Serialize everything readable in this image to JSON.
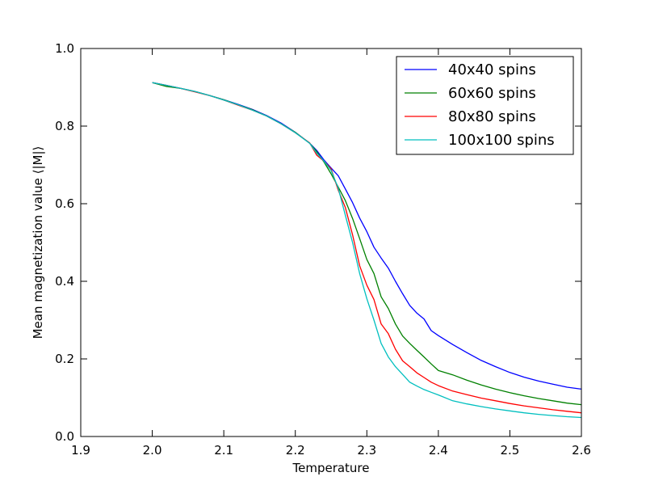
{
  "chart_data": {
    "type": "line",
    "title": "",
    "xlabel": "Temperature",
    "ylabel": "Mean magnetization value ⟨|M|⟩",
    "xlim": [
      1.9,
      2.6
    ],
    "ylim": [
      0.0,
      1.0
    ],
    "xticks": [
      1.9,
      2.0,
      2.1,
      2.2,
      2.3,
      2.4,
      2.5,
      2.6
    ],
    "xtick_labels": [
      "1.9",
      "2.0",
      "2.1",
      "2.2",
      "2.3",
      "2.4",
      "2.5",
      "2.6"
    ],
    "yticks": [
      0.0,
      0.2,
      0.4,
      0.6,
      0.8,
      1.0
    ],
    "ytick_labels": [
      "0.0",
      "0.2",
      "0.4",
      "0.6",
      "0.8",
      "1.0"
    ],
    "grid": false,
    "legend_position": "top-right",
    "series": [
      {
        "name": "40x40 spins",
        "color": "#0000ff",
        "x": [
          2.0,
          2.02,
          2.04,
          2.06,
          2.08,
          2.1,
          2.12,
          2.14,
          2.16,
          2.18,
          2.2,
          2.22,
          2.23,
          2.24,
          2.25,
          2.26,
          2.27,
          2.28,
          2.29,
          2.3,
          2.31,
          2.32,
          2.33,
          2.34,
          2.35,
          2.36,
          2.37,
          2.38,
          2.39,
          2.4,
          2.42,
          2.44,
          2.46,
          2.48,
          2.5,
          2.52,
          2.54,
          2.56,
          2.58,
          2.6
        ],
        "y": [
          0.912,
          0.905,
          0.897,
          0.889,
          0.879,
          0.868,
          0.856,
          0.843,
          0.827,
          0.808,
          0.784,
          0.756,
          0.737,
          0.713,
          0.692,
          0.672,
          0.638,
          0.603,
          0.563,
          0.528,
          0.488,
          0.46,
          0.434,
          0.4,
          0.368,
          0.338,
          0.318,
          0.303,
          0.273,
          0.26,
          0.237,
          0.216,
          0.196,
          0.18,
          0.165,
          0.153,
          0.143,
          0.135,
          0.127,
          0.122
        ]
      },
      {
        "name": "60x60 spins",
        "color": "#008000",
        "x": [
          2.0,
          2.02,
          2.04,
          2.06,
          2.08,
          2.1,
          2.12,
          2.14,
          2.16,
          2.18,
          2.2,
          2.22,
          2.23,
          2.24,
          2.25,
          2.26,
          2.27,
          2.28,
          2.29,
          2.3,
          2.31,
          2.32,
          2.33,
          2.34,
          2.35,
          2.36,
          2.37,
          2.38,
          2.39,
          2.4,
          2.42,
          2.44,
          2.46,
          2.48,
          2.5,
          2.52,
          2.54,
          2.56,
          2.58,
          2.6
        ],
        "y": [
          0.912,
          0.902,
          0.897,
          0.889,
          0.879,
          0.868,
          0.855,
          0.842,
          0.826,
          0.806,
          0.784,
          0.756,
          0.734,
          0.708,
          0.677,
          0.643,
          0.608,
          0.562,
          0.51,
          0.456,
          0.42,
          0.36,
          0.33,
          0.29,
          0.259,
          0.24,
          0.222,
          0.205,
          0.187,
          0.17,
          0.159,
          0.145,
          0.133,
          0.122,
          0.113,
          0.105,
          0.098,
          0.092,
          0.086,
          0.082
        ]
      },
      {
        "name": "80x80 spins",
        "color": "#ff0000",
        "x": [
          2.0,
          2.02,
          2.04,
          2.06,
          2.08,
          2.1,
          2.12,
          2.14,
          2.16,
          2.18,
          2.2,
          2.22,
          2.23,
          2.24,
          2.25,
          2.26,
          2.27,
          2.28,
          2.29,
          2.3,
          2.31,
          2.32,
          2.33,
          2.34,
          2.35,
          2.36,
          2.37,
          2.38,
          2.39,
          2.4,
          2.42,
          2.44,
          2.46,
          2.48,
          2.5,
          2.52,
          2.54,
          2.56,
          2.58,
          2.6
        ],
        "y": [
          0.912,
          0.905,
          0.897,
          0.888,
          0.879,
          0.867,
          0.854,
          0.841,
          0.826,
          0.806,
          0.783,
          0.757,
          0.725,
          0.71,
          0.69,
          0.635,
          0.59,
          0.52,
          0.44,
          0.39,
          0.353,
          0.29,
          0.265,
          0.225,
          0.195,
          0.18,
          0.164,
          0.152,
          0.14,
          0.131,
          0.117,
          0.108,
          0.099,
          0.092,
          0.085,
          0.079,
          0.074,
          0.069,
          0.065,
          0.061
        ]
      },
      {
        "name": "100x100 spins",
        "color": "#00bfbf",
        "x": [
          2.0,
          2.02,
          2.04,
          2.06,
          2.08,
          2.1,
          2.12,
          2.14,
          2.16,
          2.18,
          2.2,
          2.22,
          2.23,
          2.24,
          2.25,
          2.26,
          2.27,
          2.28,
          2.29,
          2.3,
          2.31,
          2.32,
          2.33,
          2.34,
          2.35,
          2.36,
          2.37,
          2.38,
          2.39,
          2.4,
          2.42,
          2.44,
          2.46,
          2.48,
          2.5,
          2.52,
          2.54,
          2.56,
          2.58,
          2.6
        ],
        "y": [
          0.912,
          0.905,
          0.897,
          0.889,
          0.879,
          0.867,
          0.855,
          0.841,
          0.826,
          0.806,
          0.783,
          0.756,
          0.73,
          0.71,
          0.686,
          0.64,
          0.57,
          0.5,
          0.42,
          0.355,
          0.3,
          0.24,
          0.205,
          0.18,
          0.16,
          0.14,
          0.13,
          0.121,
          0.114,
          0.107,
          0.092,
          0.084,
          0.077,
          0.071,
          0.066,
          0.061,
          0.057,
          0.054,
          0.051,
          0.049
        ]
      }
    ]
  }
}
